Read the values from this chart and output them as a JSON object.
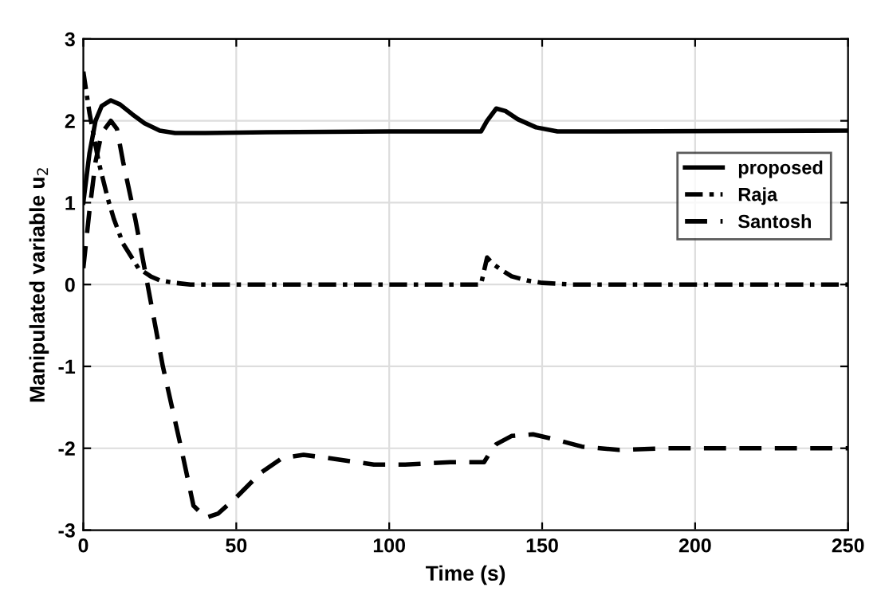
{
  "chart_data": {
    "type": "line",
    "xlabel": "Time (s)",
    "ylabel": "Manipulated variable u$_{2}$",
    "xlim": [
      0,
      250
    ],
    "ylim": [
      -3,
      3
    ],
    "xticks": [
      0,
      50,
      100,
      150,
      200,
      250
    ],
    "yticks": [
      -3,
      -2,
      -1,
      0,
      1,
      2,
      3
    ],
    "grid": true,
    "legend": "center right",
    "series": [
      {
        "name": "proposed",
        "color": "#000000",
        "line_style": "solid",
        "x": [
          0,
          2,
          4,
          6,
          9,
          12,
          16,
          20,
          25,
          30,
          40,
          60,
          100,
          130,
          132,
          135,
          138,
          142,
          148,
          155,
          170,
          250
        ],
        "values": [
          1.0,
          1.6,
          2.0,
          2.18,
          2.25,
          2.2,
          2.08,
          1.97,
          1.88,
          1.85,
          1.85,
          1.86,
          1.87,
          1.87,
          2.0,
          2.15,
          2.12,
          2.02,
          1.92,
          1.87,
          1.87,
          1.88
        ]
      },
      {
        "name": "Raja",
        "color": "#000000",
        "line_style": "dashdot",
        "x": [
          0,
          2,
          5,
          8,
          10,
          13,
          18,
          22,
          25,
          30,
          35,
          130,
          132,
          134,
          137,
          140,
          145,
          150,
          160,
          250
        ],
        "values": [
          2.6,
          2.1,
          1.5,
          1.05,
          0.8,
          0.5,
          0.2,
          0.1,
          0.05,
          0.02,
          0.0,
          0.0,
          0.33,
          0.25,
          0.17,
          0.1,
          0.05,
          0.02,
          0.0,
          0.0
        ]
      },
      {
        "name": "Santosh",
        "color": "#000000",
        "line_style": "dashed",
        "x": [
          0,
          2,
          4,
          6,
          9,
          11,
          13,
          17,
          21,
          26,
          32,
          36,
          40,
          44,
          50,
          58,
          65,
          72,
          80,
          95,
          105,
          120,
          131,
          133,
          135,
          140,
          147,
          155,
          163,
          175,
          190,
          250
        ],
        "values": [
          0.2,
          0.9,
          1.5,
          1.85,
          2.0,
          1.9,
          1.5,
          0.8,
          0.0,
          -1.0,
          -2.0,
          -2.7,
          -2.85,
          -2.8,
          -2.6,
          -2.3,
          -2.12,
          -2.08,
          -2.12,
          -2.2,
          -2.2,
          -2.17,
          -2.17,
          -2.05,
          -1.95,
          -1.85,
          -1.83,
          -1.9,
          -1.98,
          -2.02,
          -2.0,
          -2.0
        ]
      }
    ]
  }
}
